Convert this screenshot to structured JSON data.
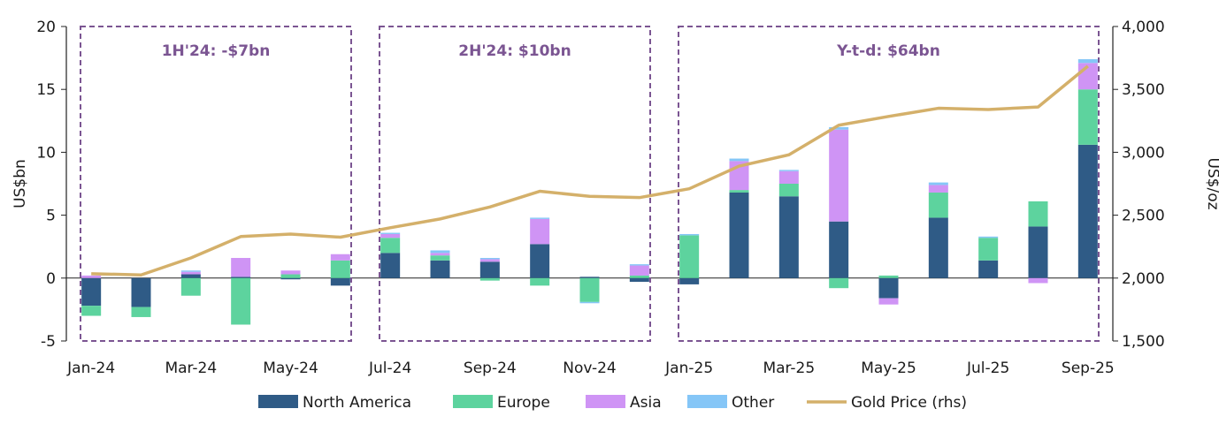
{
  "chart_data": {
    "type": "bar",
    "stacked": true,
    "categories": [
      "Jan-24",
      "Feb-24",
      "Mar-24",
      "Apr-24",
      "May-24",
      "Jun-24",
      "Jul-24",
      "Aug-24",
      "Sep-24",
      "Oct-24",
      "Nov-24",
      "Dec-24",
      "Jan-25",
      "Feb-25",
      "Mar-25",
      "Apr-25",
      "May-25",
      "Jun-25",
      "Jul-25",
      "Aug-25",
      "Sep-25"
    ],
    "x_tick_labels": [
      "Jan-24",
      "Mar-24",
      "May-24",
      "Jul-24",
      "Sep-24",
      "Nov-24",
      "Jan-25",
      "Mar-25",
      "May-25",
      "Jul-25",
      "Sep-25"
    ],
    "series": [
      {
        "name": "North America",
        "color": "#2f5b86",
        "values": [
          -2.2,
          -2.3,
          0.3,
          0.1,
          -0.1,
          -0.6,
          2.0,
          1.4,
          1.3,
          2.7,
          0.1,
          -0.3,
          -0.5,
          6.8,
          6.5,
          4.5,
          -1.6,
          4.8,
          1.4,
          4.1,
          10.6
        ]
      },
      {
        "name": "Europe",
        "color": "#5dd39e",
        "values": [
          -0.8,
          -0.8,
          -1.4,
          -3.7,
          0.3,
          1.4,
          1.2,
          0.4,
          -0.2,
          -0.6,
          -1.9,
          0.2,
          3.4,
          0.2,
          1.0,
          -0.8,
          0.2,
          2.0,
          1.8,
          2.0,
          4.4
        ]
      },
      {
        "name": "Asia",
        "color": "#cf94f5",
        "values": [
          0.2,
          0.0,
          0.2,
          1.5,
          0.3,
          0.5,
          0.3,
          0.2,
          0.2,
          2.0,
          0.0,
          0.8,
          0.0,
          2.3,
          1.0,
          7.3,
          -0.5,
          0.6,
          0.0,
          -0.4,
          2.1
        ]
      },
      {
        "name": "Other",
        "color": "#85c6f7",
        "values": [
          0.0,
          0.0,
          0.1,
          0.0,
          0.0,
          0.0,
          0.1,
          0.2,
          0.1,
          0.1,
          -0.1,
          0.1,
          0.1,
          0.2,
          0.1,
          0.2,
          0.0,
          0.2,
          0.1,
          0.0,
          0.3
        ]
      }
    ],
    "line_series": {
      "name": "Gold Price (rhs)",
      "color": "#d4b06a",
      "values": [
        2035,
        2025,
        2160,
        2330,
        2350,
        2325,
        2400,
        2470,
        2565,
        2690,
        2650,
        2640,
        2710,
        2890,
        2980,
        3215,
        3285,
        3350,
        3340,
        3360,
        3685
      ]
    },
    "y_left": {
      "label": "US$bn",
      "min": -5,
      "max": 20,
      "ticks": [
        -5,
        0,
        5,
        10,
        15,
        20
      ],
      "tick_labels": [
        "-5",
        "0",
        "5",
        "10",
        "15",
        "20"
      ]
    },
    "y_right": {
      "label": "US$/oz",
      "min": 1500,
      "max": 4000,
      "ticks": [
        1500,
        2000,
        2500,
        3000,
        3500,
        4000
      ],
      "tick_labels": [
        "1,500",
        "2,000",
        "2,500",
        "3,000",
        "3,500",
        "4,000"
      ]
    },
    "annotations": [
      {
        "text": "1H'24: -$7bn",
        "from_index": 0,
        "to_index": 5
      },
      {
        "text": "2H'24: $10bn",
        "from_index": 6,
        "to_index": 11
      },
      {
        "text": "Y-t-d: $64bn",
        "from_index": 12,
        "to_index": 20
      }
    ],
    "annotation_color": "#7b5592",
    "grid": false,
    "legend_position": "bottom"
  }
}
